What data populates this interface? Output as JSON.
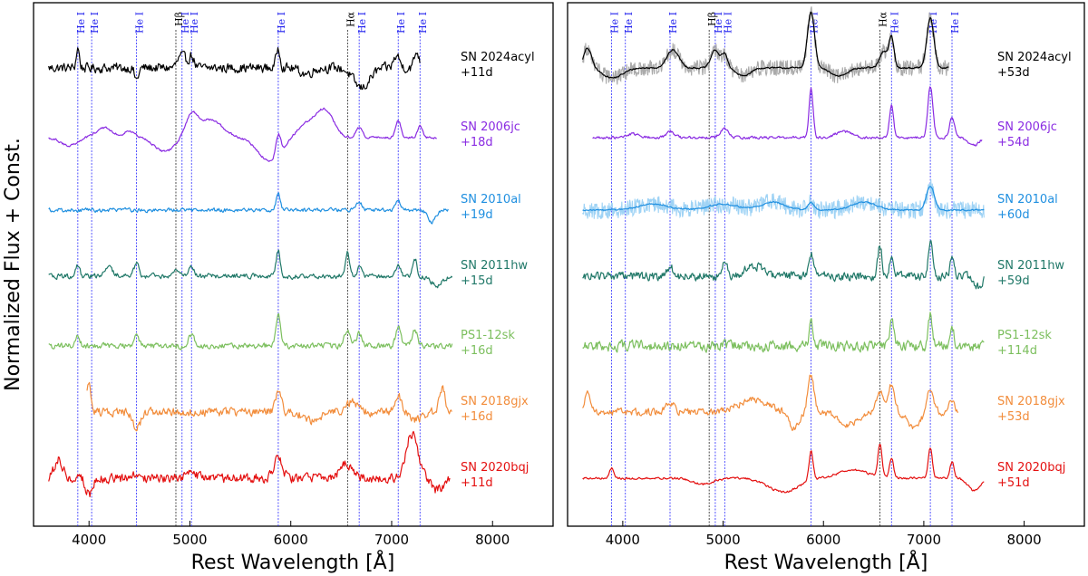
{
  "figure": {
    "ylabel": "Normalized Flux + Const.",
    "xlabel": "Rest Wavelength [Å]"
  },
  "colors": {
    "he_line": "#2b2bff",
    "balmer_line": "#222222",
    "label_he": "#2020ee",
    "label_balmer": "#000000"
  },
  "chart_data": [
    {
      "type": "line",
      "panel": "left",
      "title": "",
      "xlabel": "Rest Wavelength [Å]",
      "ylabel": "Normalized Flux + Const.",
      "xlim": [
        3450,
        8600
      ],
      "xticks": [
        4000,
        5000,
        6000,
        7000,
        8000
      ],
      "xtick_labels": [
        "4000",
        "5000",
        "6000",
        "7000",
        "8000"
      ],
      "lines": [
        {
          "label": "He I",
          "x": 3889,
          "kind": "he"
        },
        {
          "label": "He I",
          "x": 4026,
          "kind": "he"
        },
        {
          "label": "He I",
          "x": 4471,
          "kind": "he"
        },
        {
          "label": "Hβ",
          "x": 4861,
          "kind": "balmer"
        },
        {
          "label": "He I",
          "x": 4922,
          "kind": "he"
        },
        {
          "label": "He I",
          "x": 5016,
          "kind": "he"
        },
        {
          "label": "He I",
          "x": 5876,
          "kind": "he"
        },
        {
          "label": "Hα",
          "x": 6563,
          "kind": "balmer"
        },
        {
          "label": "He I",
          "x": 6678,
          "kind": "he"
        },
        {
          "label": "He I",
          "x": 7065,
          "kind": "he"
        },
        {
          "label": "He I",
          "x": 7281,
          "kind": "he"
        }
      ],
      "series": [
        {
          "name": "SN 2024acyl",
          "phase": "+11d",
          "color": "#000000",
          "x_range": [
            3600,
            7280
          ],
          "offset": 0,
          "features": [
            [
              3889,
              1.0,
              15
            ],
            [
              4471,
              -0.6,
              20
            ],
            [
              4920,
              0.6,
              40
            ],
            [
              5016,
              0.6,
              25
            ],
            [
              5876,
              1.0,
              20
            ],
            [
              6150,
              -0.3,
              60
            ],
            [
              6700,
              -1.0,
              80
            ],
            [
              7050,
              0.6,
              30
            ],
            [
              7250,
              0.8,
              25
            ]
          ],
          "noise": 0.35
        },
        {
          "name": "SN 2006jc",
          "phase": "+18d",
          "color": "#8a2be2",
          "x_range": [
            3600,
            7450
          ],
          "offset": 1,
          "features": [
            [
              3800,
              -0.4,
              80
            ],
            [
              4150,
              0.5,
              80
            ],
            [
              4400,
              0.3,
              60
            ],
            [
              4750,
              -0.7,
              100
            ],
            [
              5016,
              1.0,
              60
            ],
            [
              5200,
              0.9,
              120
            ],
            [
              5800,
              -1.2,
              120
            ],
            [
              5876,
              1.1,
              25
            ],
            [
              6200,
              0.8,
              130
            ],
            [
              6350,
              1.0,
              80
            ],
            [
              6678,
              0.5,
              30
            ],
            [
              7065,
              0.9,
              25
            ],
            [
              7281,
              0.6,
              25
            ]
          ],
          "noise": 0.08
        },
        {
          "name": "SN 2010al",
          "phase": "+19d",
          "color": "#1f8fe0",
          "x_range": [
            3600,
            7560
          ],
          "offset": 2,
          "features": [
            [
              5876,
              0.8,
              20
            ],
            [
              6678,
              0.4,
              25
            ],
            [
              7065,
              0.5,
              25
            ],
            [
              7400,
              -0.6,
              40
            ]
          ],
          "noise": 0.14
        },
        {
          "name": "SN 2011hw",
          "phase": "+15d",
          "color": "#207868",
          "x_range": [
            3600,
            7600
          ],
          "offset": 3,
          "features": [
            [
              3889,
              0.5,
              20
            ],
            [
              4200,
              0.4,
              40
            ],
            [
              4471,
              0.6,
              25
            ],
            [
              4861,
              0.4,
              25
            ],
            [
              5016,
              0.5,
              25
            ],
            [
              5876,
              1.3,
              20
            ],
            [
              6563,
              1.2,
              20
            ],
            [
              6678,
              0.5,
              20
            ],
            [
              7065,
              0.6,
              20
            ],
            [
              7230,
              0.9,
              20
            ],
            [
              7450,
              -0.5,
              50
            ]
          ],
          "noise": 0.18
        },
        {
          "name": "PS1-12sk",
          "phase": "+16d",
          "color": "#7cbf5e",
          "x_range": [
            3600,
            7600
          ],
          "offset": 4,
          "features": [
            [
              3889,
              0.5,
              20
            ],
            [
              4471,
              0.5,
              25
            ],
            [
              5016,
              0.6,
              30
            ],
            [
              5876,
              1.6,
              22
            ],
            [
              6563,
              0.8,
              30
            ],
            [
              6678,
              0.6,
              25
            ],
            [
              7065,
              0.9,
              25
            ],
            [
              7230,
              0.8,
              25
            ]
          ],
          "noise": 0.2
        },
        {
          "name": "SN 2018gjx",
          "phase": "+16d",
          "color": "#f28d3c",
          "x_range": [
            3980,
            7600
          ],
          "offset": 5,
          "features": [
            [
              4000,
              1.5,
              20
            ],
            [
              4471,
              -0.8,
              40
            ],
            [
              5876,
              1.0,
              30
            ],
            [
              6200,
              -0.4,
              80
            ],
            [
              6600,
              0.5,
              60
            ],
            [
              7065,
              0.8,
              30
            ],
            [
              7250,
              -0.4,
              50
            ],
            [
              7500,
              1.2,
              30
            ]
          ],
          "noise": 0.3
        },
        {
          "name": "SN 2020bqj",
          "phase": "+11d",
          "color": "#e41010",
          "x_range": [
            3600,
            7580
          ],
          "offset": 6,
          "features": [
            [
              3700,
              1.0,
              40
            ],
            [
              4000,
              -0.8,
              30
            ],
            [
              4471,
              0.3,
              40
            ],
            [
              5016,
              0.4,
              40
            ],
            [
              5876,
              1.0,
              40
            ],
            [
              6550,
              0.7,
              60
            ],
            [
              7200,
              2.2,
              60
            ],
            [
              7450,
              -0.6,
              60
            ]
          ],
          "noise": 0.35
        }
      ]
    },
    {
      "type": "line",
      "panel": "right",
      "title": "",
      "xlabel": "Rest Wavelength [Å]",
      "ylabel": "",
      "xlim": [
        3450,
        8600
      ],
      "xticks": [
        4000,
        5000,
        6000,
        7000,
        8000
      ],
      "xtick_labels": [
        "4000",
        "5000",
        "6000",
        "7000",
        "8000"
      ],
      "lines": [
        {
          "label": "He I",
          "x": 3889,
          "kind": "he"
        },
        {
          "label": "He I",
          "x": 4026,
          "kind": "he"
        },
        {
          "label": "He I",
          "x": 4471,
          "kind": "he"
        },
        {
          "label": "Hβ",
          "x": 4861,
          "kind": "balmer"
        },
        {
          "label": "He I",
          "x": 4922,
          "kind": "he"
        },
        {
          "label": "He I",
          "x": 5016,
          "kind": "he"
        },
        {
          "label": "He I",
          "x": 5876,
          "kind": "he"
        },
        {
          "label": "Hα",
          "x": 6563,
          "kind": "balmer"
        },
        {
          "label": "He I",
          "x": 6678,
          "kind": "he"
        },
        {
          "label": "He I",
          "x": 7065,
          "kind": "he"
        },
        {
          "label": "He I",
          "x": 7281,
          "kind": "he"
        }
      ],
      "series": [
        {
          "name": "SN 2024acyl",
          "phase": "+53d",
          "color": "#000000",
          "raw_color": "#aaaaaa",
          "x_range": [
            3600,
            7250
          ],
          "offset": 0,
          "features": [
            [
              3650,
              1.0,
              40
            ],
            [
              3900,
              -0.5,
              100
            ],
            [
              4500,
              0.9,
              60
            ],
            [
              4920,
              0.9,
              40
            ],
            [
              5016,
              0.7,
              30
            ],
            [
              5200,
              -0.4,
              70
            ],
            [
              5876,
              2.8,
              35
            ],
            [
              6150,
              -0.4,
              80
            ],
            [
              6600,
              0.8,
              40
            ],
            [
              6678,
              1.5,
              25
            ],
            [
              7065,
              2.5,
              35
            ]
          ],
          "noise": 0.06,
          "raw_noise": 0.4
        },
        {
          "name": "SN 2006jc",
          "phase": "+54d",
          "color": "#8a2be2",
          "x_range": [
            3700,
            7580
          ],
          "offset": 1,
          "features": [
            [
              4100,
              0.2,
              60
            ],
            [
              4471,
              0.3,
              40
            ],
            [
              5016,
              0.5,
              40
            ],
            [
              5876,
              2.5,
              20
            ],
            [
              6200,
              0.3,
              80
            ],
            [
              6678,
              1.6,
              20
            ],
            [
              7065,
              2.6,
              25
            ],
            [
              7281,
              1.0,
              25
            ],
            [
              7500,
              -0.4,
              50
            ]
          ],
          "noise": 0.1
        },
        {
          "name": "SN 2010al",
          "phase": "+60d",
          "color": "#1f8fe0",
          "raw_color": "#9fd3f5",
          "x_range": [
            3600,
            7600
          ],
          "offset": 2,
          "features": [
            [
              4300,
              0.3,
              150
            ],
            [
              5000,
              0.3,
              150
            ],
            [
              5500,
              0.4,
              120
            ],
            [
              5876,
              0.4,
              30
            ],
            [
              6400,
              0.4,
              120
            ],
            [
              7065,
              1.2,
              40
            ]
          ],
          "noise": 0.05,
          "raw_noise": 0.45
        },
        {
          "name": "SN 2011hw",
          "phase": "+59d",
          "color": "#207868",
          "x_range": [
            3600,
            7600
          ],
          "offset": 3,
          "features": [
            [
              4471,
              0.4,
              40
            ],
            [
              5016,
              0.6,
              30
            ],
            [
              5300,
              0.6,
              80
            ],
            [
              5876,
              1.1,
              25
            ],
            [
              6563,
              1.6,
              20
            ],
            [
              6678,
              1.0,
              20
            ],
            [
              7065,
              1.8,
              20
            ],
            [
              7281,
              0.8,
              20
            ],
            [
              7550,
              -0.5,
              40
            ]
          ],
          "noise": 0.32
        },
        {
          "name": "PS1-12sk",
          "phase": "+114d",
          "color": "#7cbf5e",
          "x_range": [
            3600,
            7600
          ],
          "offset": 4,
          "features": [
            [
              5876,
              1.2,
              20
            ],
            [
              6678,
              1.3,
              20
            ],
            [
              7065,
              1.6,
              20
            ],
            [
              7281,
              1.0,
              20
            ]
          ],
          "noise": 0.38
        },
        {
          "name": "SN 2018gjx",
          "phase": "+53d",
          "color": "#f28d3c",
          "x_range": [
            3600,
            7350
          ],
          "offset": 5,
          "features": [
            [
              3650,
              1.0,
              30
            ],
            [
              4471,
              0.5,
              40
            ],
            [
              5300,
              0.6,
              150
            ],
            [
              5700,
              -0.8,
              50
            ],
            [
              5876,
              1.8,
              30
            ],
            [
              6250,
              -0.6,
              100
            ],
            [
              6563,
              1.0,
              40
            ],
            [
              6678,
              1.4,
              30
            ],
            [
              6900,
              -0.8,
              60
            ],
            [
              7065,
              1.3,
              30
            ],
            [
              7281,
              0.6,
              25
            ]
          ],
          "noise": 0.25
        },
        {
          "name": "SN 2020bqj",
          "phase": "+51d",
          "color": "#e41010",
          "x_range": [
            3600,
            7600
          ],
          "offset": 6,
          "features": [
            [
              3889,
              0.5,
              20
            ],
            [
              4800,
              -0.3,
              100
            ],
            [
              5600,
              -0.7,
              150
            ],
            [
              5876,
              1.5,
              20
            ],
            [
              6300,
              0.4,
              150
            ],
            [
              6563,
              1.6,
              20
            ],
            [
              6678,
              1.0,
              20
            ],
            [
              7065,
              1.5,
              20
            ],
            [
              7281,
              0.8,
              20
            ],
            [
              7500,
              -0.6,
              60
            ]
          ],
          "noise": 0.08
        }
      ]
    }
  ]
}
